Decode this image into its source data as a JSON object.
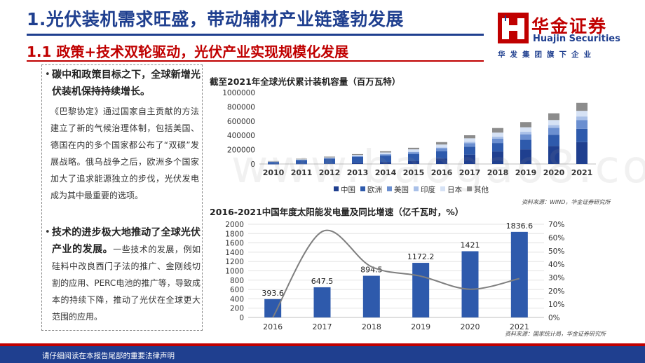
{
  "header": {
    "title": "1.光伏装机需求旺盛，带动辅材产业链蓬勃发展",
    "subtitle": "1.1 政策+技术双轮驱动，光伏产业实现规模化发展"
  },
  "logo": {
    "name_cn": "华金证券",
    "name_en": "Huajin Securities",
    "tagline": "华发集团旗下企业",
    "colors": {
      "red": "#c00000",
      "blue": "#1f3f8f"
    }
  },
  "text_panel": {
    "bullet1_head": "碳中和政策目标之下，全球新增光伏装机保持持续增长。",
    "bullet1_body": "《巴黎协定》通过国家自主贡献的方法建立了新的气候治理体制，包括美国、德国在内的多个国家都公布了“双碳”发展战略。俄乌战争之后，欧洲多个国家加大了追求能源独立的步伐，光伏发电成为其中最重要的选项。",
    "bullet2_head": "技术的进步极大地推动了全球光伏产业的发展。",
    "bullet2_body": "一些技术的发展，例如硅料中改良西门子法的推广、金刚线切割的应用、PERC电池的推广等，导致成本的持续下降，推动了光伏在全球更大范围的应用。"
  },
  "watermark": "www.baogao8.com",
  "chart_data": [
    {
      "type": "bar",
      "stacked": true,
      "title": "截至2021年全球光伏累计装机容量（百万瓦特）",
      "categories": [
        "2010",
        "2011",
        "2012",
        "2013",
        "2014",
        "2015",
        "2016",
        "2017",
        "2018",
        "2019",
        "2020",
        "2021"
      ],
      "ylim": [
        0,
        1000000
      ],
      "yticks": [
        0,
        200000,
        400000,
        600000,
        800000,
        1000000
      ],
      "legend_position": "bottom",
      "series": [
        {
          "name": "中国",
          "color": "#1f3f8f",
          "values": [
            800,
            3300,
            6700,
            17700,
            28400,
            43500,
            77800,
            131000,
            175300,
            204700,
            253400,
            306400
          ]
        },
        {
          "name": "欧洲",
          "color": "#2e5aac",
          "values": [
            29800,
            52800,
            70000,
            81000,
            88000,
            96000,
            102000,
            110000,
            118000,
            135000,
            156000,
            186000
          ]
        },
        {
          "name": "美国",
          "color": "#6b8fd0",
          "values": [
            2500,
            4400,
            7700,
            12000,
            18300,
            25600,
            40300,
            51000,
            62500,
            75600,
            95200,
            123000
          ]
        },
        {
          "name": "印度",
          "color": "#a9c0e8",
          "values": [
            100,
            600,
            1200,
            2300,
            3500,
            5600,
            9900,
            18200,
            27100,
            35100,
            39200,
            49700
          ]
        },
        {
          "name": "日本",
          "color": "#d6e2f5",
          "values": [
            3600,
            4900,
            6600,
            13600,
            23300,
            34200,
            42100,
            49000,
            56000,
            63200,
            71100,
            78200
          ]
        },
        {
          "name": "其他",
          "color": "#8c8c8c",
          "values": [
            3800,
            7500,
            10800,
            11400,
            16500,
            22100,
            33900,
            42800,
            64100,
            72400,
            94100,
            111700
          ]
        }
      ],
      "source": "资料来源：WIND，华金证券研究所"
    },
    {
      "type": "bar+line",
      "title": "2016-2021中国年度太阳能发电量及同比增速（亿千瓦时，%）",
      "categories": [
        "2016",
        "2017",
        "2018",
        "2019",
        "2020",
        "2021"
      ],
      "bars": {
        "values": [
          393.6,
          647.5,
          894.5,
          1172.2,
          1421,
          1836.6
        ],
        "labels": [
          "393.6",
          "647.5",
          "894.5",
          "1172.2",
          "1421",
          "1836.6"
        ],
        "color": "#2e5aac"
      },
      "line": {
        "values": [
          0.0,
          64.5,
          38.1,
          31.0,
          21.2,
          29.2
        ],
        "color": "#7f7f7f"
      },
      "y_left": {
        "lim": [
          0,
          2000
        ],
        "ticks": [
          0,
          200,
          400,
          600,
          800,
          1000,
          1200,
          1400,
          1600,
          1800,
          2000
        ]
      },
      "y_right": {
        "lim": [
          0,
          70
        ],
        "ticks": [
          "0%",
          "10%",
          "20%",
          "30%",
          "40%",
          "50%",
          "60%",
          "70%"
        ]
      },
      "source": "资料来源：国家统计局，华金证券研究所"
    }
  ],
  "footer": {
    "disclaimer": "请仔细阅读在本报告尾部的重要法律声明"
  }
}
